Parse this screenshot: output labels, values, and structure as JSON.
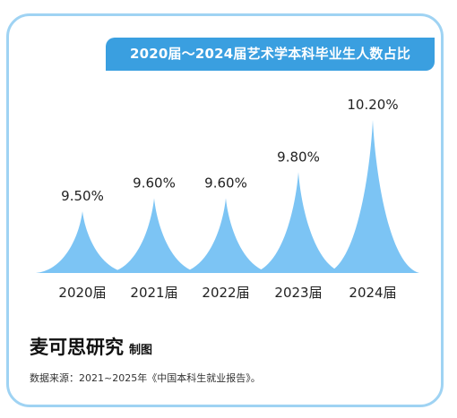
{
  "title": "2020届～2024届艺术学本科毕业生人数占比",
  "brand": "麦可思研究",
  "brand_suffix": "制图",
  "source": "数据来源：2021~2025年《中国本科生就业报告》。",
  "colors": {
    "accent": "#3a9fe0",
    "border": "#9fd3f3",
    "peak_fill": "#7cc4f4"
  },
  "chart_data": {
    "type": "bar",
    "categories": [
      "2020届",
      "2021届",
      "2022届",
      "2023届",
      "2024届"
    ],
    "values": [
      9.5,
      9.6,
      9.6,
      9.8,
      10.2
    ],
    "value_labels": [
      "9.50%",
      "9.60%",
      "9.60%",
      "9.80%",
      "10.20%"
    ],
    "title": "2020届～2024届艺术学本科毕业生人数占比",
    "xlabel": "",
    "ylabel": "",
    "unit": "%",
    "grid": false,
    "legend": "none"
  }
}
